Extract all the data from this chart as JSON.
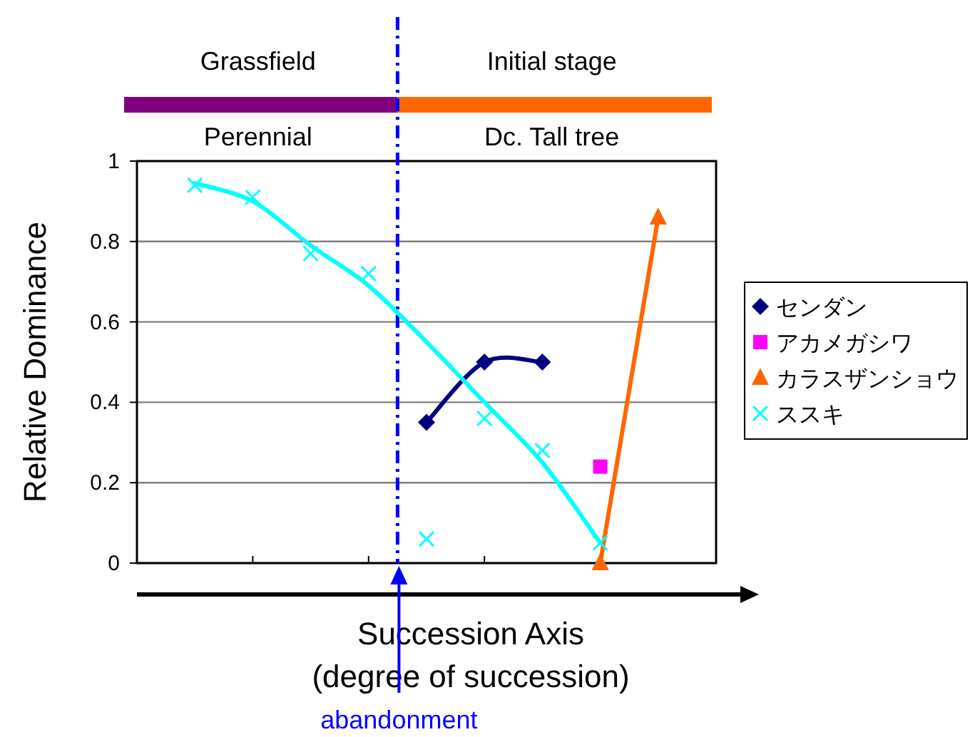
{
  "chart_data": {
    "type": "scatter",
    "xlabel": "Succession Axis (degree of succession)",
    "ylabel": "Relative Dominance",
    "categories": [
      null,
      null,
      null,
      null,
      null,
      null,
      null,
      null,
      null
    ],
    "ylim": [
      0,
      1
    ],
    "yticks": [
      0,
      0.2,
      0.4,
      0.6,
      0.8,
      1
    ],
    "grid": "y",
    "legend": "right",
    "series": [
      {
        "name": "センダン",
        "type": "line",
        "marker": "diamond",
        "color": "#000080",
        "values": [
          null,
          null,
          null,
          null,
          0.35,
          0.5,
          0.5,
          null,
          null
        ]
      },
      {
        "name": "アカメガシワ",
        "marker": "square",
        "color": "#ff00ff",
        "values": [
          null,
          null,
          null,
          null,
          null,
          null,
          null,
          0.24,
          null
        ]
      },
      {
        "name": "カラスザンショウ",
        "type": "line",
        "marker": "triangle",
        "color": "#ff6600",
        "values": [
          null,
          null,
          null,
          null,
          null,
          null,
          null,
          0,
          0.86
        ]
      },
      {
        "name": "ススキ",
        "marker": "cross",
        "color": "#00ffff",
        "values": [
          0.94,
          0.91,
          0.77,
          0.72,
          0.06,
          0.36,
          0.28,
          0.05,
          null
        ]
      },
      {
        "type": "line",
        "marker": "none",
        "color": "#00ffff",
        "values": [
          0.945,
          0.9,
          0.79,
          0.69,
          0.55,
          0.4,
          0.25,
          0.05,
          null
        ]
      }
    ],
    "annotations": [
      "Grassfield",
      "Initial stage",
      "Perennial",
      "Dc. Tall tree",
      "abandonment"
    ]
  }
}
